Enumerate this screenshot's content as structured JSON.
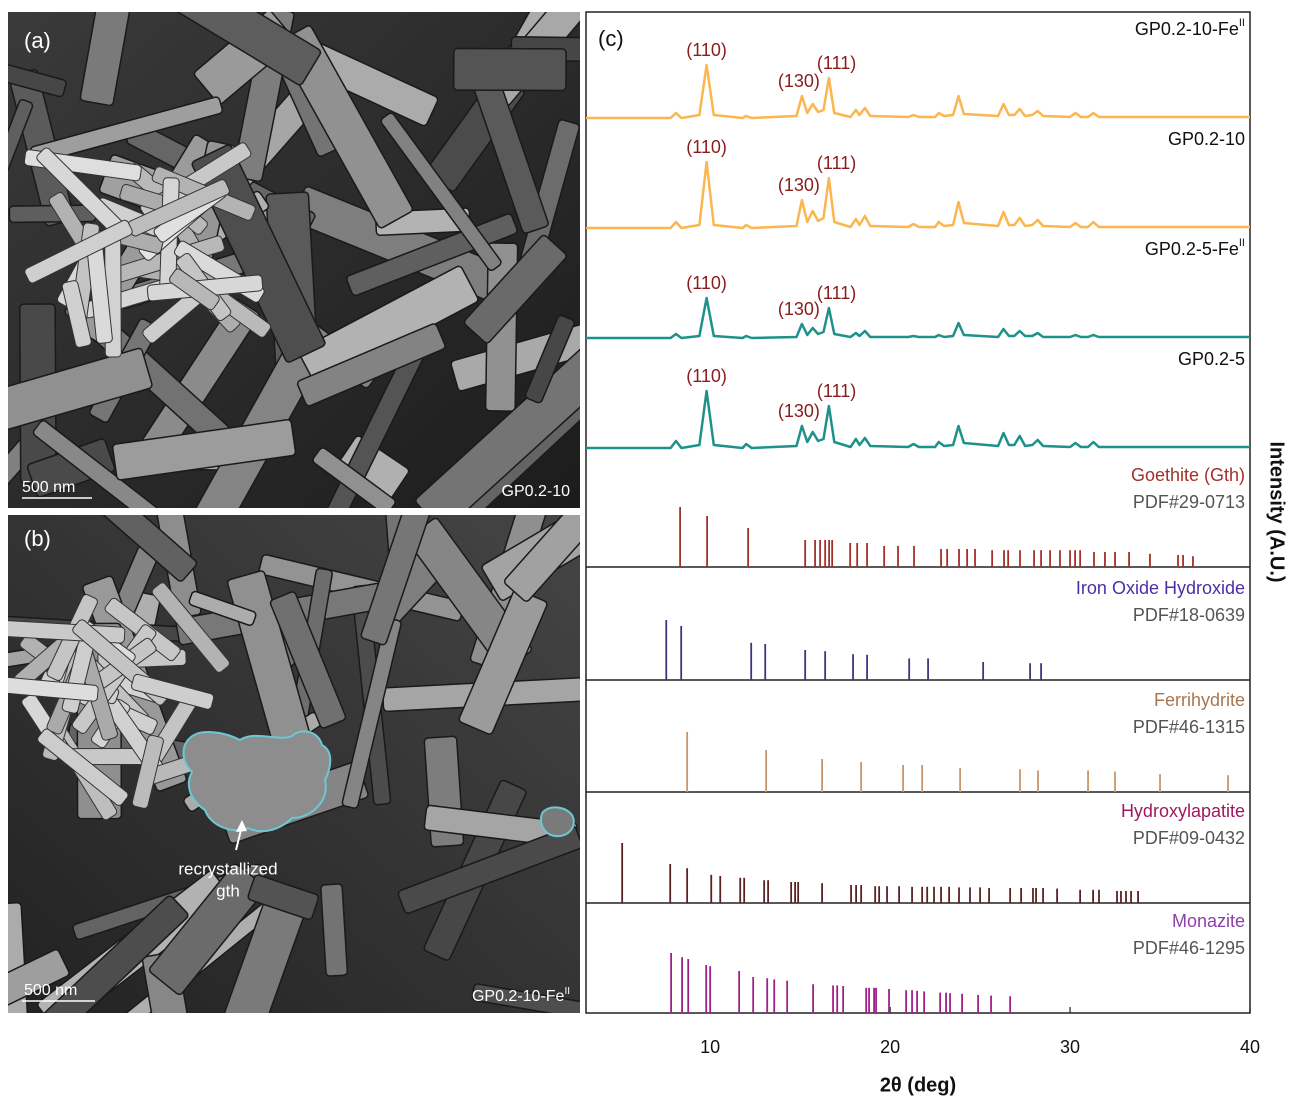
{
  "panels": [
    {
      "label": "(a)",
      "scale_bar": "500 nm",
      "sample": "GP0.2-10"
    },
    {
      "label": "(b)",
      "scale_bar": "500 nm",
      "sample": "GP0.2-10-Fe",
      "sample_sup": "II",
      "annotation": [
        "recrystallized",
        "gth"
      ]
    }
  ],
  "chart_data": {
    "type": "xrd",
    "panel_label": "(c)",
    "xlabel": "2θ (deg)",
    "ylabel": "Intensity (A.U.)",
    "xlim": [
      3.1,
      40
    ],
    "xticks": [
      10,
      20,
      30,
      40
    ],
    "ylim": [
      0,
      100
    ],
    "x": [
      3.1,
      7.8,
      8.1,
      8.4,
      9.4,
      9.8,
      10.2,
      11.8,
      12.0,
      12.3,
      14.8,
      15.1,
      15.4,
      15.7,
      16.0,
      16.3,
      16.6,
      16.9,
      17.8,
      18.1,
      18.3,
      18.6,
      18.9,
      21.0,
      21.3,
      21.6,
      22.5,
      22.7,
      23.0,
      23.5,
      23.8,
      24.1,
      26.0,
      26.3,
      26.6,
      26.9,
      27.2,
      27.5,
      27.9,
      28.2,
      28.5,
      30.0,
      30.3,
      30.6,
      31.0,
      31.3,
      31.6,
      40
    ],
    "series": [
      {
        "name": "GP0.2-10-Fe",
        "name_sup": "II",
        "color": "#fbb64f",
        "values": [
          0,
          0,
          5,
          0,
          3,
          53,
          3,
          0,
          2,
          0,
          2,
          22,
          5,
          14,
          6,
          8,
          40,
          5,
          1,
          8,
          3,
          10,
          2,
          1,
          3,
          1,
          1,
          5,
          2,
          3,
          22,
          4,
          2,
          14,
          3,
          3,
          9,
          2,
          3,
          7,
          2,
          1,
          5,
          1,
          1,
          5,
          1,
          1
        ],
        "annotations": [
          {
            "text": "(110)",
            "x": 9.8
          },
          {
            "text": "(130)",
            "x": 15.1
          },
          {
            "text": "(111)",
            "x": 16.6
          }
        ]
      },
      {
        "name": "GP0.2-10",
        "color": "#fbb64f",
        "values": [
          0,
          0,
          6,
          0,
          3,
          66,
          3,
          0,
          3,
          0,
          2,
          28,
          6,
          17,
          7,
          10,
          50,
          6,
          1,
          9,
          3,
          12,
          2,
          1,
          4,
          1,
          1,
          6,
          2,
          3,
          26,
          5,
          2,
          16,
          3,
          3,
          10,
          2,
          3,
          8,
          2,
          1,
          5,
          1,
          1,
          6,
          1,
          1
        ],
        "annotations": [
          {
            "text": "(110)",
            "x": 9.8
          },
          {
            "text": "(130)",
            "x": 15.1
          },
          {
            "text": "(111)",
            "x": 16.6
          }
        ]
      },
      {
        "name": "GP0.2-5-Fe",
        "name_sup": "II",
        "color": "#1e928a",
        "values": [
          0,
          0,
          4,
          0,
          2,
          40,
          2,
          0,
          2,
          0,
          1,
          14,
          3,
          10,
          4,
          6,
          30,
          4,
          1,
          5,
          2,
          7,
          1,
          1,
          2,
          1,
          1,
          3,
          1,
          2,
          15,
          3,
          1,
          9,
          2,
          2,
          7,
          2,
          2,
          5,
          1,
          1,
          3,
          1,
          1,
          3,
          1,
          1
        ],
        "annotations": [
          {
            "text": "(110)",
            "x": 9.8
          },
          {
            "text": "(130)",
            "x": 15.1
          },
          {
            "text": "(111)",
            "x": 16.6
          }
        ]
      },
      {
        "name": "GP0.2-5",
        "color": "#1e928a",
        "values": [
          0,
          0,
          7,
          0,
          3,
          57,
          3,
          0,
          4,
          0,
          2,
          22,
          6,
          16,
          7,
          9,
          42,
          6,
          1,
          9,
          3,
          10,
          2,
          1,
          4,
          1,
          1,
          6,
          2,
          3,
          22,
          5,
          2,
          15,
          3,
          3,
          12,
          2,
          3,
          8,
          2,
          1,
          5,
          1,
          1,
          6,
          1,
          1
        ],
        "annotations": [
          {
            "text": "(110)",
            "x": 9.8
          },
          {
            "text": "(130)",
            "x": 15.1
          },
          {
            "text": "(111)",
            "x": 16.6
          }
        ]
      }
    ],
    "annotation_color": "#8b1c1c",
    "references": [
      {
        "name": "Goethite (Gth)",
        "pdf": "PDF#29-0713",
        "label_color": "#a3302a",
        "color": "#a3302a",
        "positions": [
          8.33,
          9.83,
          12.11,
          15.28,
          15.83,
          16.11,
          16.39,
          16.61,
          16.78,
          17.78,
          18.17,
          18.72,
          19.67,
          20.44,
          21.33,
          22.83,
          23.17,
          23.83,
          24.28,
          24.72,
          25.67,
          26.33,
          26.56,
          27.22,
          28.0,
          28.39,
          28.89,
          29.44,
          30.0,
          30.28,
          30.56,
          31.33,
          31.94,
          32.5,
          33.28,
          34.44,
          36.0,
          36.28,
          36.83
        ],
        "intensities": [
          100,
          85,
          65,
          45,
          45,
          45,
          45,
          45,
          45,
          40,
          40,
          40,
          35,
          35,
          35,
          30,
          30,
          30,
          30,
          30,
          28,
          28,
          28,
          28,
          28,
          28,
          28,
          28,
          28,
          28,
          28,
          25,
          25,
          25,
          25,
          22,
          20,
          20,
          18
        ]
      },
      {
        "name": "Iron Oxide Hydroxide",
        "pdf": "PDF#18-0639",
        "label_color": "#4b2ea8",
        "color": "#3d3580",
        "positions": [
          7.56,
          8.39,
          12.28,
          13.06,
          15.28,
          16.39,
          17.94,
          18.72,
          21.06,
          22.11,
          25.17,
          27.78,
          28.39
        ],
        "intensities": [
          100,
          90,
          62,
          60,
          50,
          48,
          43,
          42,
          36,
          36,
          30,
          28,
          28
        ]
      },
      {
        "name": "Ferrihydrite",
        "pdf": "PDF#46-1315",
        "label_color": "#a87650",
        "color": "#c8966a",
        "positions": [
          8.72,
          13.11,
          16.22,
          18.39,
          20.72,
          21.78,
          23.89,
          27.22,
          28.22,
          31.0,
          32.5,
          35.0,
          38.78
        ],
        "intensities": [
          100,
          70,
          55,
          50,
          45,
          45,
          40,
          38,
          36,
          36,
          34,
          30,
          28
        ]
      },
      {
        "name": "Hydroxylapatite",
        "pdf": "PDF#09-0432",
        "label_color": "#a01860",
        "color": "#5a2222",
        "positions": [
          5.11,
          7.78,
          8.72,
          10.06,
          10.56,
          11.67,
          11.89,
          13.0,
          13.22,
          14.5,
          14.72,
          14.89,
          16.22,
          17.83,
          18.11,
          18.39,
          19.17,
          19.39,
          19.83,
          20.5,
          21.22,
          21.78,
          22.06,
          22.44,
          22.83,
          23.28,
          23.83,
          24.44,
          25.0,
          25.5,
          26.67,
          27.28,
          27.94,
          28.11,
          28.5,
          29.28,
          30.56,
          31.28,
          31.61,
          32.61,
          32.83,
          33.11,
          33.39,
          33.78
        ],
        "intensities": [
          100,
          65,
          58,
          47,
          45,
          42,
          42,
          38,
          38,
          35,
          35,
          35,
          33,
          30,
          30,
          30,
          28,
          28,
          28,
          28,
          27,
          27,
          27,
          27,
          27,
          27,
          26,
          26,
          26,
          25,
          25,
          25,
          25,
          25,
          25,
          24,
          22,
          22,
          22,
          20,
          20,
          20,
          20,
          20
        ]
      },
      {
        "name": "Monazite",
        "pdf": "PDF#46-1295",
        "label_color": "#8a40a8",
        "color": "#a0208a",
        "positions": [
          7.83,
          8.44,
          8.78,
          9.78,
          10.0,
          11.61,
          12.39,
          13.17,
          13.56,
          14.28,
          15.72,
          16.83,
          17.06,
          17.39,
          18.67,
          18.83,
          19.11,
          19.22,
          19.94,
          20.89,
          21.22,
          21.5,
          21.89,
          22.78,
          23.11,
          23.33,
          24.0,
          24.89,
          25.61,
          26.67
        ],
        "intensities": [
          100,
          93,
          90,
          80,
          78,
          70,
          60,
          58,
          56,
          54,
          48,
          46,
          46,
          45,
          42,
          42,
          42,
          42,
          40,
          38,
          38,
          37,
          36,
          34,
          34,
          33,
          32,
          30,
          29,
          28
        ]
      }
    ]
  }
}
